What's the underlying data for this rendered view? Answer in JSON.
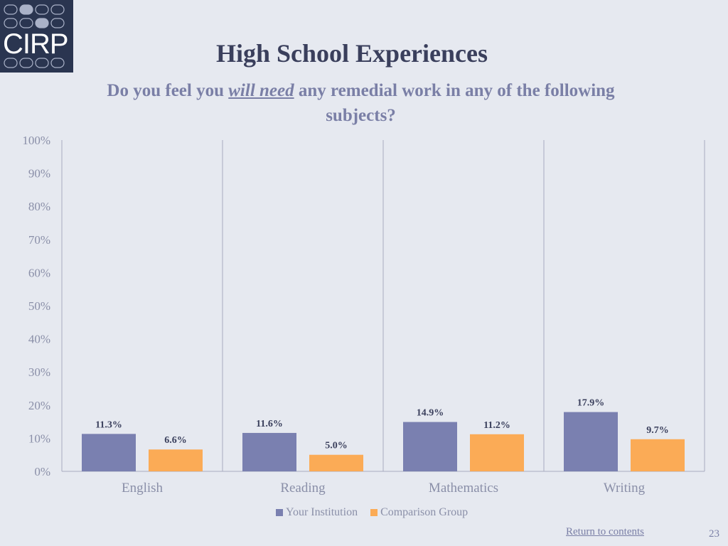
{
  "logo": {
    "text": "CIRP"
  },
  "header": {
    "title": "High School Experiences",
    "subtitle_pre": "Do you feel you ",
    "subtitle_em": "will need",
    "subtitle_post": " any remedial work in any of the following subjects?"
  },
  "chart_data": {
    "type": "bar",
    "categories": [
      "English",
      "Reading",
      "Mathematics",
      "Writing"
    ],
    "series": [
      {
        "name": "Your Institution",
        "color": "#7a80b0",
        "values": [
          11.3,
          11.6,
          14.9,
          17.9
        ],
        "labels": [
          "11.3%",
          "11.6%",
          "14.9%",
          "17.9%"
        ]
      },
      {
        "name": "Comparison Group",
        "color": "#fbab56",
        "values": [
          6.6,
          5.0,
          11.2,
          9.7
        ],
        "labels": [
          "6.6%",
          "5.0%",
          "11.2%",
          "9.7%"
        ]
      }
    ],
    "ylim": [
      0,
      100
    ],
    "yticks": [
      "0%",
      "10%",
      "20%",
      "30%",
      "40%",
      "50%",
      "60%",
      "70%",
      "80%",
      "90%",
      "100%"
    ],
    "grid": false,
    "legend_position": "bottom"
  },
  "footer": {
    "link": "Return to contents",
    "page": "23"
  }
}
